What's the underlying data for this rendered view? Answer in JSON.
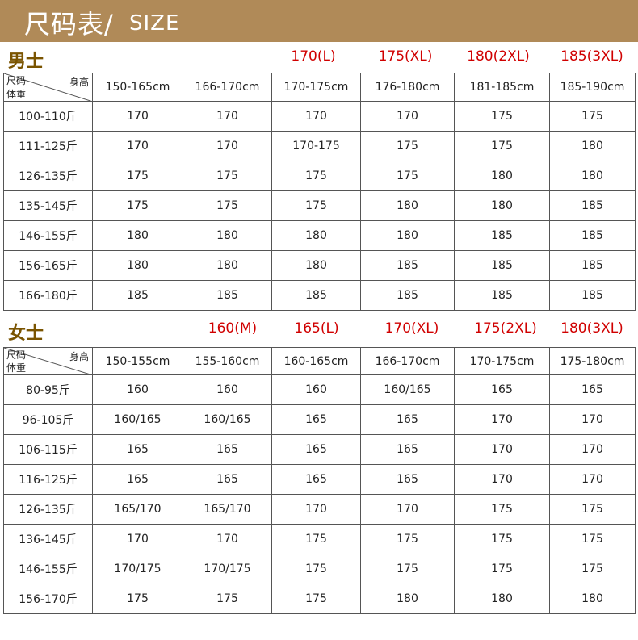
{
  "header": {
    "title_zh": "尺码表/",
    "title_en": "SIZE"
  },
  "men": {
    "title": "男士",
    "sizes": [
      "170(L)",
      "175(XL)",
      "180(2XL)",
      "185(3XL)"
    ],
    "corner": {
      "top": "尺码",
      "bottom": "体重",
      "right": "身高"
    },
    "heights": [
      "150-165cm",
      "166-170cm",
      "170-175cm",
      "176-180cm",
      "181-185cm",
      "185-190cm"
    ],
    "rows": [
      {
        "weight": "100-110斤",
        "cells": [
          "170",
          "170",
          "170",
          "170",
          "175",
          "175"
        ]
      },
      {
        "weight": "111-125斤",
        "cells": [
          "170",
          "170",
          "170-175",
          "175",
          "175",
          "180"
        ]
      },
      {
        "weight": "126-135斤",
        "cells": [
          "175",
          "175",
          "175",
          "175",
          "180",
          "180"
        ]
      },
      {
        "weight": "135-145斤",
        "cells": [
          "175",
          "175",
          "175",
          "180",
          "180",
          "185"
        ]
      },
      {
        "weight": "146-155斤",
        "cells": [
          "180",
          "180",
          "180",
          "180",
          "185",
          "185"
        ]
      },
      {
        "weight": "156-165斤",
        "cells": [
          "180",
          "180",
          "180",
          "185",
          "185",
          "185"
        ]
      },
      {
        "weight": "166-180斤",
        "cells": [
          "185",
          "185",
          "185",
          "185",
          "185",
          "185"
        ]
      }
    ]
  },
  "women": {
    "title": "女士",
    "sizes": [
      "160(M)",
      "165(L)",
      "170(XL)",
      "175(2XL)",
      "180(3XL)"
    ],
    "corner": {
      "top": "尺码",
      "bottom": "体重",
      "right": "身高"
    },
    "heights": [
      "150-155cm",
      "155-160cm",
      "160-165cm",
      "166-170cm",
      "170-175cm",
      "175-180cm"
    ],
    "rows": [
      {
        "weight": "80-95斤",
        "cells": [
          "160",
          "160",
          "160",
          "160/165",
          "165",
          "165"
        ]
      },
      {
        "weight": "96-105斤",
        "cells": [
          "160/165",
          "160/165",
          "165",
          "165",
          "170",
          "170"
        ]
      },
      {
        "weight": "106-115斤",
        "cells": [
          "165",
          "165",
          "165",
          "165",
          "170",
          "170"
        ]
      },
      {
        "weight": "116-125斤",
        "cells": [
          "165",
          "165",
          "165",
          "165",
          "170",
          "170"
        ]
      },
      {
        "weight": "126-135斤",
        "cells": [
          "165/170",
          "165/170",
          "170",
          "170",
          "175",
          "175"
        ]
      },
      {
        "weight": "136-145斤",
        "cells": [
          "170",
          "170",
          "175",
          "175",
          "175",
          "175"
        ]
      },
      {
        "weight": "146-155斤",
        "cells": [
          "170/175",
          "170/175",
          "175",
          "175",
          "175",
          "175"
        ]
      },
      {
        "weight": "156-170斤",
        "cells": [
          "175",
          "175",
          "175",
          "180",
          "180",
          "180"
        ]
      }
    ]
  }
}
